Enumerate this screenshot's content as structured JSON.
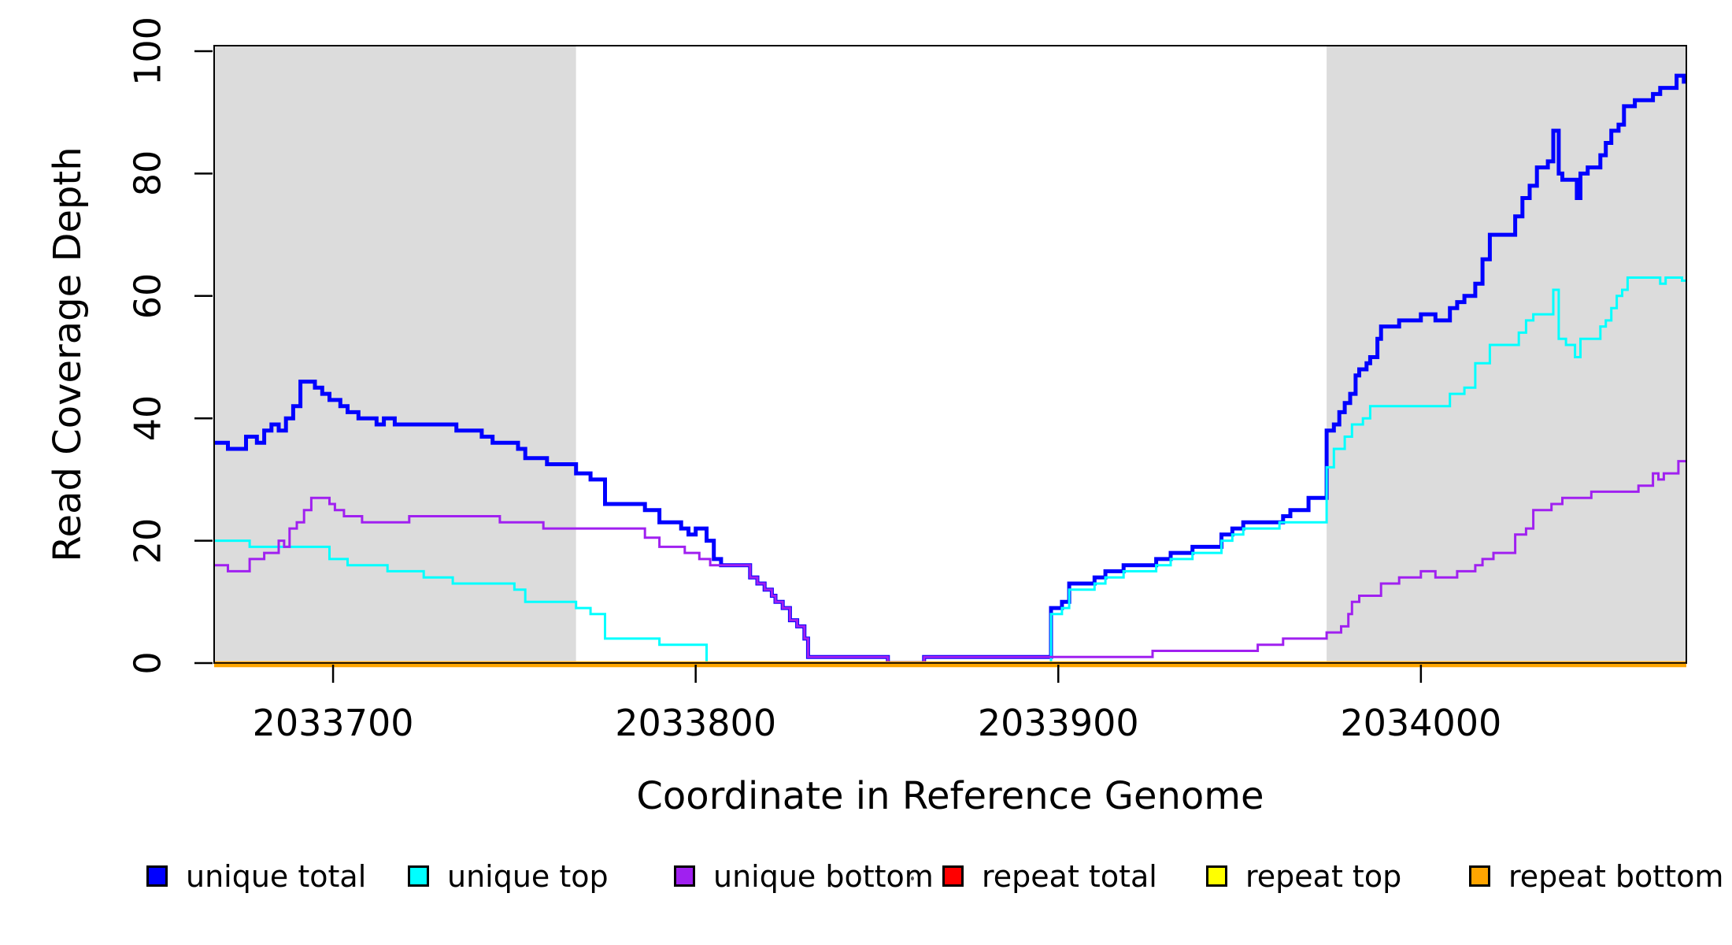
{
  "chart_data": {
    "type": "line",
    "subtype": "step",
    "title": "",
    "x_axis": {
      "label": "Coordinate in Reference Genome",
      "range": [
        2033667.2,
        2034073.2
      ],
      "ticks": [
        {
          "coord": 2033700,
          "label": "2033700"
        },
        {
          "coord": 2033800,
          "label": "2033800"
        },
        {
          "coord": 2033900,
          "label": "2033900"
        },
        {
          "coord": 2034000,
          "label": "2034000"
        }
      ]
    },
    "y_axis": {
      "label": "Read Coverage Depth",
      "range": [
        0,
        100.9
      ],
      "ticks": [
        {
          "value": 0,
          "label": "0"
        },
        {
          "value": 20,
          "label": "20"
        },
        {
          "value": 40,
          "label": "40"
        },
        {
          "value": 60,
          "label": "60"
        },
        {
          "value": 80,
          "label": "80"
        },
        {
          "value": 100,
          "label": "100"
        }
      ]
    },
    "grid": false,
    "legend_position": "bottom",
    "highlight_color": "#DCDCDC",
    "highlight_regions": [
      {
        "x_start": 2033667.2,
        "x_end": 2033767
      },
      {
        "x_start": 2033974,
        "x_end": 2034073.2
      }
    ],
    "series": [
      {
        "name": "unique-total",
        "label": "unique total",
        "color": "#0000FF",
        "line_width": 5,
        "points": [
          [
            2033667.2,
            36
          ],
          [
            2033671,
            35
          ],
          [
            2033676,
            37
          ],
          [
            2033679,
            36
          ],
          [
            2033681,
            38
          ],
          [
            2033683,
            39
          ],
          [
            2033685,
            38
          ],
          [
            2033687,
            40
          ],
          [
            2033689,
            42
          ],
          [
            2033691,
            46
          ],
          [
            2033695,
            45
          ],
          [
            2033697,
            44
          ],
          [
            2033699,
            43
          ],
          [
            2033702,
            42
          ],
          [
            2033704,
            41
          ],
          [
            2033707,
            40
          ],
          [
            2033712,
            39
          ],
          [
            2033714,
            40
          ],
          [
            2033717,
            39
          ],
          [
            2033734,
            38
          ],
          [
            2033741,
            37
          ],
          [
            2033744,
            36
          ],
          [
            2033751,
            35
          ],
          [
            2033753,
            33.5
          ],
          [
            2033759,
            32.5
          ],
          [
            2033767,
            31
          ],
          [
            2033771,
            30
          ],
          [
            2033775,
            26
          ],
          [
            2033786,
            25
          ],
          [
            2033790,
            23
          ],
          [
            2033796,
            22
          ],
          [
            2033798,
            21
          ],
          [
            2033800,
            22
          ],
          [
            2033803,
            20
          ],
          [
            2033805,
            17
          ],
          [
            2033807,
            16
          ],
          [
            2033815,
            14
          ],
          [
            2033817,
            13
          ],
          [
            2033819,
            12
          ],
          [
            2033821,
            11
          ],
          [
            2033822,
            10
          ],
          [
            2033824,
            9
          ],
          [
            2033826,
            7
          ],
          [
            2033828,
            6
          ],
          [
            2033830,
            4
          ],
          [
            2033831,
            1
          ],
          [
            2033853,
            0
          ],
          [
            2033863,
            1
          ],
          [
            2033898,
            9
          ],
          [
            2033901,
            10
          ],
          [
            2033903,
            13
          ],
          [
            2033910,
            14
          ],
          [
            2033913,
            15
          ],
          [
            2033918,
            16
          ],
          [
            2033927,
            17
          ],
          [
            2033931,
            18
          ],
          [
            2033937,
            19
          ],
          [
            2033945,
            21
          ],
          [
            2033948,
            22
          ],
          [
            2033951,
            23
          ],
          [
            2033962,
            24
          ],
          [
            2033964,
            25
          ],
          [
            2033969,
            27
          ],
          [
            2033974,
            38
          ],
          [
            2033976,
            39
          ],
          [
            2033977.5,
            41
          ],
          [
            2033979,
            42.5
          ],
          [
            2033980.5,
            44
          ],
          [
            2033982,
            47
          ],
          [
            2033983,
            48
          ],
          [
            2033985,
            49
          ],
          [
            2033986,
            50
          ],
          [
            2033988,
            53
          ],
          [
            2033989,
            55
          ],
          [
            2033994,
            56
          ],
          [
            2034000,
            57
          ],
          [
            2034004,
            56
          ],
          [
            2034008,
            58
          ],
          [
            2034010,
            59
          ],
          [
            2034012,
            60
          ],
          [
            2034015,
            62
          ],
          [
            2034017,
            66
          ],
          [
            2034019,
            70
          ],
          [
            2034026,
            73
          ],
          [
            2034028,
            76
          ],
          [
            2034030,
            78
          ],
          [
            2034032,
            81
          ],
          [
            2034035,
            82
          ],
          [
            2034036.5,
            87
          ],
          [
            2034038,
            80
          ],
          [
            2034039,
            79
          ],
          [
            2034043,
            76
          ],
          [
            2034044,
            80
          ],
          [
            2034046,
            81
          ],
          [
            2034049.5,
            83
          ],
          [
            2034051,
            85
          ],
          [
            2034052.5,
            87
          ],
          [
            2034054.5,
            88
          ],
          [
            2034056,
            91
          ],
          [
            2034059,
            92
          ],
          [
            2034064,
            93
          ],
          [
            2034066,
            94
          ],
          [
            2034070.5,
            96
          ],
          [
            2034072.5,
            95
          ]
        ]
      },
      {
        "name": "unique-top",
        "label": "unique top",
        "color": "#00FFFF",
        "line_width": 3,
        "points": [
          [
            2033667.2,
            20
          ],
          [
            2033677,
            19
          ],
          [
            2033699,
            17
          ],
          [
            2033704,
            16
          ],
          [
            2033715,
            15
          ],
          [
            2033725,
            14
          ],
          [
            2033733,
            13
          ],
          [
            2033750,
            12
          ],
          [
            2033753,
            10
          ],
          [
            2033767,
            9
          ],
          [
            2033771,
            8
          ],
          [
            2033775,
            4
          ],
          [
            2033790,
            3
          ],
          [
            2033803,
            0
          ],
          [
            2033898,
            8
          ],
          [
            2033901,
            9
          ],
          [
            2033903,
            12
          ],
          [
            2033910,
            13
          ],
          [
            2033913,
            14
          ],
          [
            2033918,
            15
          ],
          [
            2033927,
            16
          ],
          [
            2033931,
            17
          ],
          [
            2033937,
            18
          ],
          [
            2033945,
            20
          ],
          [
            2033948,
            21
          ],
          [
            2033951,
            22
          ],
          [
            2033961,
            23
          ],
          [
            2033974,
            32
          ],
          [
            2033976,
            35
          ],
          [
            2033979,
            37
          ],
          [
            2033981,
            39
          ],
          [
            2033984,
            40
          ],
          [
            2033986,
            42
          ],
          [
            2034008,
            44
          ],
          [
            2034012,
            45
          ],
          [
            2034015,
            49
          ],
          [
            2034019,
            52
          ],
          [
            2034027,
            54
          ],
          [
            2034029,
            56
          ],
          [
            2034031,
            57
          ],
          [
            2034036.5,
            61
          ],
          [
            2034038,
            53
          ],
          [
            2034040,
            52
          ],
          [
            2034042.5,
            50
          ],
          [
            2034044,
            53
          ],
          [
            2034049.5,
            55
          ],
          [
            2034051,
            56
          ],
          [
            2034052.5,
            58
          ],
          [
            2034054,
            60
          ],
          [
            2034055.5,
            61
          ],
          [
            2034057,
            63
          ],
          [
            2034066,
            62
          ],
          [
            2034067.5,
            63
          ],
          [
            2034072,
            62.5
          ]
        ]
      },
      {
        "name": "unique-bottom",
        "label": "unique bottom",
        "color": "#A020F0",
        "line_width": 3,
        "points": [
          [
            2033667.2,
            16
          ],
          [
            2033671,
            15
          ],
          [
            2033677,
            17
          ],
          [
            2033681,
            18
          ],
          [
            2033685,
            20
          ],
          [
            2033686.5,
            19
          ],
          [
            2033688,
            22
          ],
          [
            2033690,
            23
          ],
          [
            2033692,
            25
          ],
          [
            2033694,
            27
          ],
          [
            2033699,
            26
          ],
          [
            2033700.5,
            25
          ],
          [
            2033703,
            24
          ],
          [
            2033708,
            23
          ],
          [
            2033721,
            24
          ],
          [
            2033746,
            23
          ],
          [
            2033758,
            22
          ],
          [
            2033786,
            20.5
          ],
          [
            2033790,
            19
          ],
          [
            2033797,
            18
          ],
          [
            2033801,
            17
          ],
          [
            2033804,
            16
          ],
          [
            2033815,
            14
          ],
          [
            2033817,
            13
          ],
          [
            2033819,
            12
          ],
          [
            2033821,
            11
          ],
          [
            2033822,
            10
          ],
          [
            2033824,
            9
          ],
          [
            2033826,
            7
          ],
          [
            2033828,
            6
          ],
          [
            2033830,
            4
          ],
          [
            2033831,
            1
          ],
          [
            2033853,
            0
          ],
          [
            2033863,
            1
          ],
          [
            2033926,
            2
          ],
          [
            2033955,
            3
          ],
          [
            2033962,
            4
          ],
          [
            2033974,
            5
          ],
          [
            2033978,
            6
          ],
          [
            2033980,
            8
          ],
          [
            2033981,
            10
          ],
          [
            2033983,
            11
          ],
          [
            2033989,
            13
          ],
          [
            2033994,
            14
          ],
          [
            2034000,
            15
          ],
          [
            2034004,
            14
          ],
          [
            2034010,
            15
          ],
          [
            2034015,
            16
          ],
          [
            2034017,
            17
          ],
          [
            2034020,
            18
          ],
          [
            2034026,
            21
          ],
          [
            2034029,
            22
          ],
          [
            2034031,
            25
          ],
          [
            2034036,
            26
          ],
          [
            2034039,
            27
          ],
          [
            2034047,
            28
          ],
          [
            2034060,
            29
          ],
          [
            2034064,
            31
          ],
          [
            2034065.5,
            30
          ],
          [
            2034067,
            31
          ],
          [
            2034071,
            33
          ]
        ]
      },
      {
        "name": "repeat-total",
        "label": "repeat total",
        "color": "#FF0000",
        "line_width": 3,
        "points": [
          [
            2033667.2,
            0
          ]
        ]
      },
      {
        "name": "repeat-top",
        "label": "repeat top",
        "color": "#FFFF00",
        "line_width": 3,
        "points": [
          [
            2033667.2,
            0
          ]
        ]
      },
      {
        "name": "repeat-bottom",
        "label": "repeat bottom",
        "color": "#FFA500",
        "line_width": 4.5,
        "points": [
          [
            2033667.2,
            0
          ]
        ]
      }
    ]
  }
}
